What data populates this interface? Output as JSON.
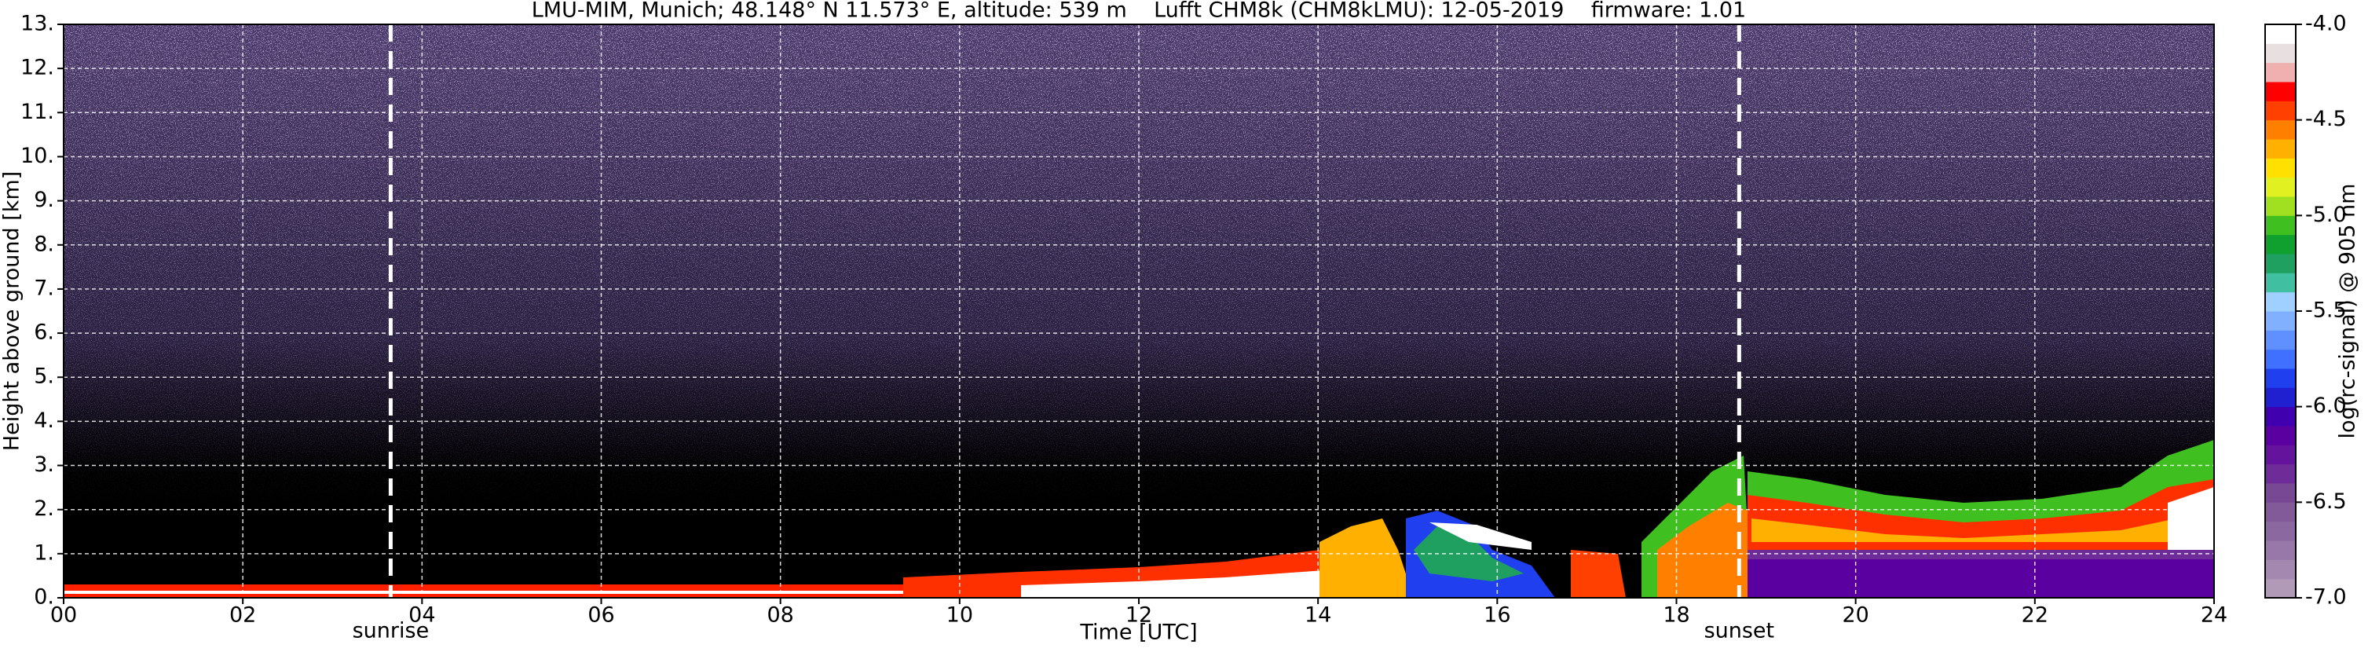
{
  "chart_data": {
    "type": "heatmap",
    "title": "LMU-MIM, Munich; 48.148° N 11.573° E, altitude: 539 m    Lufft CHM8k (CHM8kLMU): 12-05-2019    firmware: 1.01",
    "x_label": "Time [UTC]",
    "y_label": "Height above ground [km]",
    "xlim": [
      0,
      24
    ],
    "xticks": [
      {
        "value": 0,
        "label": "00"
      },
      {
        "value": 2,
        "label": "02"
      },
      {
        "value": 4,
        "label": "04"
      },
      {
        "value": 6,
        "label": "06"
      },
      {
        "value": 8,
        "label": "08"
      },
      10,
      12,
      14,
      16,
      18,
      20,
      22,
      24
    ],
    "ylim": [
      0,
      13
    ],
    "yticks": [
      {
        "value": 0,
        "label": "0."
      },
      {
        "value": 1,
        "label": "1."
      },
      {
        "value": 2,
        "label": "2."
      },
      {
        "value": 3,
        "label": "3."
      },
      {
        "value": 4,
        "label": "4."
      },
      {
        "value": 5,
        "label": "5."
      },
      {
        "value": 6,
        "label": "6."
      },
      {
        "value": 7,
        "label": "7."
      },
      {
        "value": 8,
        "label": "8."
      },
      {
        "value": 9,
        "label": "9."
      },
      {
        "value": 10,
        "label": "10."
      },
      {
        "value": 11,
        "label": "11."
      },
      {
        "value": 12,
        "label": "12."
      },
      {
        "value": 13,
        "label": "13."
      }
    ],
    "grid": true,
    "annotations": [
      {
        "label": "sunrise",
        "x": 3.65
      },
      {
        "label": "sunset",
        "x": 18.7
      }
    ],
    "colorbar": {
      "label": "log(rc-signal) @ 905 nm",
      "clim": [
        -7,
        -4
      ],
      "ticks": [
        {
          "value": -4,
          "label": "-4.0"
        },
        -4.5,
        {
          "value": -5,
          "label": "-5.0"
        },
        -5.5,
        {
          "value": -6,
          "label": "-6.0"
        },
        -6.5,
        {
          "value": -7,
          "label": "-7.0"
        }
      ],
      "colors": [
        "#b09ab8",
        "#a488b0",
        "#9878a8",
        "#8c68a0",
        "#825a9a",
        "#784894",
        "#6e2c98",
        "#64149c",
        "#5a00a0",
        "#4000b0",
        "#2020d0",
        "#2040f0",
        "#4070ff",
        "#6090ff",
        "#80b0ff",
        "#a0d0ff",
        "#40c0a0",
        "#20a060",
        "#10a030",
        "#40c020",
        "#a0e020",
        "#e0f020",
        "#ffe000",
        "#ffb000",
        "#ff8000",
        "#ff4000",
        "#ff0000",
        "#f0b0b0",
        "#e8e0e0",
        "#ffffff"
      ]
    }
  }
}
